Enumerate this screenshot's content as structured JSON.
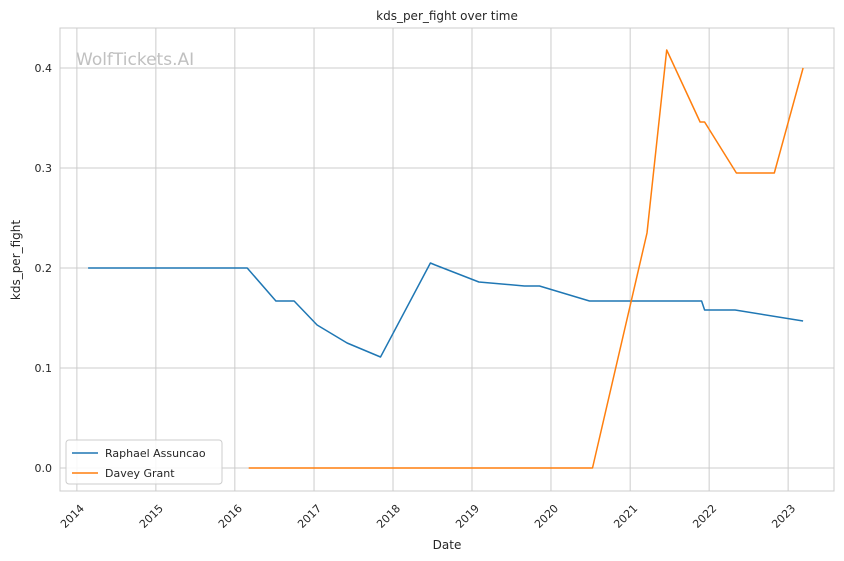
{
  "chart_data": {
    "type": "line",
    "title": "kds_per_fight over time",
    "xlabel": "Date",
    "ylabel": "kds_per_fight",
    "watermark": "WolfTickets.AI",
    "x_ticks": [
      "2014",
      "2015",
      "2016",
      "2017",
      "2018",
      "2019",
      "2020",
      "2021",
      "2022",
      "2023"
    ],
    "y_ticks": [
      "0.0",
      "0.1",
      "0.2",
      "0.3",
      "0.4"
    ],
    "xlim": [
      "2013-10-15",
      "2023-08-01"
    ],
    "ylim": [
      -0.023,
      0.44
    ],
    "grid": true,
    "legend": "lower-left",
    "series": [
      {
        "name": "Raphael Assuncao",
        "color": "#1f77b4",
        "points": [
          [
            "2014-02-22",
            0.2
          ],
          [
            "2016-02-27",
            0.2
          ],
          [
            "2016-07-09",
            0.167
          ],
          [
            "2016-10-01",
            0.167
          ],
          [
            "2017-01-15",
            0.143
          ],
          [
            "2017-06-03",
            0.125
          ],
          [
            "2017-11-04",
            0.111
          ],
          [
            "2018-06-23",
            0.205
          ],
          [
            "2018-07-15",
            0.203
          ],
          [
            "2019-02-02",
            0.186
          ],
          [
            "2019-08-31",
            0.182
          ],
          [
            "2019-11-09",
            0.182
          ],
          [
            "2020-06-27",
            0.167
          ],
          [
            "2021-11-27",
            0.167
          ],
          [
            "2021-12-11",
            0.158
          ],
          [
            "2022-05-01",
            0.158
          ],
          [
            "2023-03-11",
            0.147
          ]
        ]
      },
      {
        "name": "Davey Grant",
        "color": "#ff7f0e",
        "points": [
          [
            "2016-03-05",
            0.0
          ],
          [
            "2020-07-11",
            0.0
          ],
          [
            "2021-03-20",
            0.235
          ],
          [
            "2021-06-19",
            0.418
          ],
          [
            "2021-11-20",
            0.346
          ],
          [
            "2021-12-11",
            0.346
          ],
          [
            "2022-05-07",
            0.295
          ],
          [
            "2022-10-29",
            0.295
          ],
          [
            "2023-03-11",
            0.4
          ]
        ]
      }
    ]
  }
}
